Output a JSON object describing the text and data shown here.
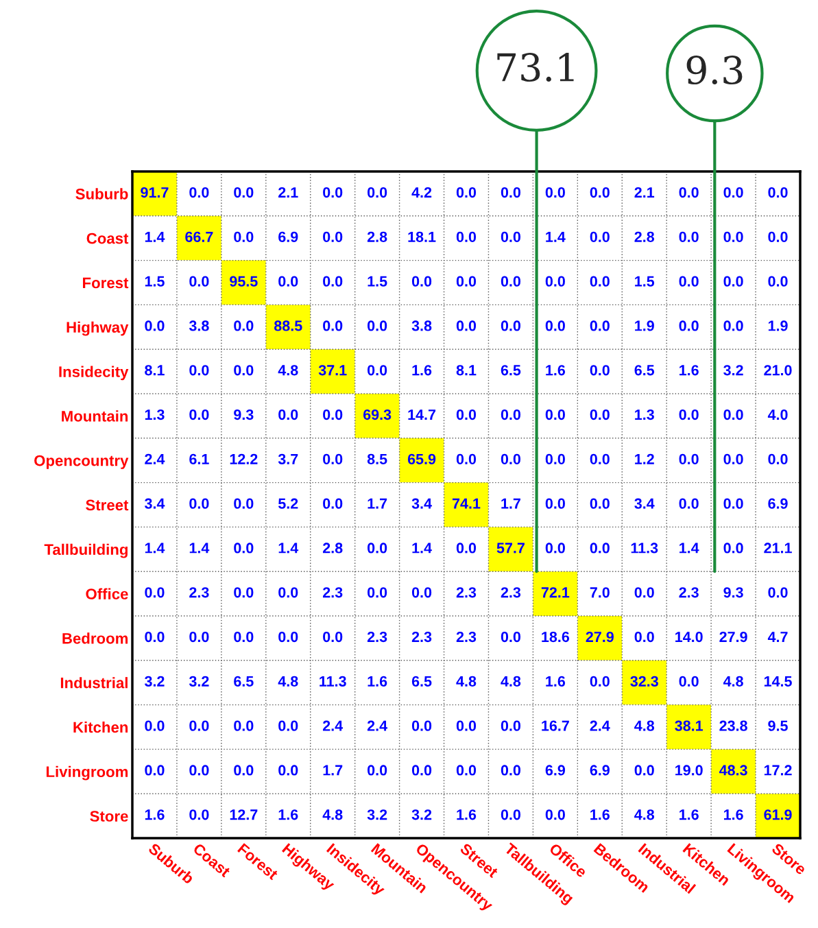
{
  "chart_data": {
    "type": "heatmap",
    "categories": [
      "Suburb",
      "Coast",
      "Forest",
      "Highway",
      "Insidecity",
      "Mountain",
      "Opencountry",
      "Street",
      "Tallbuilding",
      "Office",
      "Bedroom",
      "Industrial",
      "Kitchen",
      "Livingroom",
      "Store"
    ],
    "y_categories": [
      "Suburb",
      "Coast",
      "Forest",
      "Highway",
      "Insidecity",
      "Mountain",
      "Opencountry",
      "Street",
      "Tallbuilding",
      "Office",
      "Bedroom",
      "Industrial",
      "Kitchen",
      "Livingroom",
      "Store"
    ],
    "cells": [
      [
        91.7,
        0.0,
        0.0,
        2.1,
        0.0,
        0.0,
        4.2,
        0.0,
        0.0,
        0.0,
        0.0,
        2.1,
        0.0,
        0.0,
        0.0
      ],
      [
        1.4,
        66.7,
        0.0,
        6.9,
        0.0,
        2.8,
        18.1,
        0.0,
        0.0,
        1.4,
        0.0,
        2.8,
        0.0,
        0.0,
        0.0
      ],
      [
        1.5,
        0.0,
        95.5,
        0.0,
        0.0,
        1.5,
        0.0,
        0.0,
        0.0,
        0.0,
        0.0,
        1.5,
        0.0,
        0.0,
        0.0
      ],
      [
        0.0,
        3.8,
        0.0,
        88.5,
        0.0,
        0.0,
        3.8,
        0.0,
        0.0,
        0.0,
        0.0,
        1.9,
        0.0,
        0.0,
        1.9
      ],
      [
        8.1,
        0.0,
        0.0,
        4.8,
        37.1,
        0.0,
        1.6,
        8.1,
        6.5,
        1.6,
        0.0,
        6.5,
        1.6,
        3.2,
        21.0
      ],
      [
        1.3,
        0.0,
        9.3,
        0.0,
        0.0,
        69.3,
        14.7,
        0.0,
        0.0,
        0.0,
        0.0,
        1.3,
        0.0,
        0.0,
        4.0
      ],
      [
        2.4,
        6.1,
        12.2,
        3.7,
        0.0,
        8.5,
        65.9,
        0.0,
        0.0,
        0.0,
        0.0,
        1.2,
        0.0,
        0.0,
        0.0
      ],
      [
        3.4,
        0.0,
        0.0,
        5.2,
        0.0,
        1.7,
        3.4,
        74.1,
        1.7,
        0.0,
        0.0,
        3.4,
        0.0,
        0.0,
        6.9
      ],
      [
        1.4,
        1.4,
        0.0,
        1.4,
        2.8,
        0.0,
        1.4,
        0.0,
        57.7,
        0.0,
        0.0,
        11.3,
        1.4,
        0.0,
        21.1
      ],
      [
        0.0,
        2.3,
        0.0,
        0.0,
        2.3,
        0.0,
        0.0,
        2.3,
        2.3,
        72.1,
        7.0,
        0.0,
        2.3,
        9.3,
        0.0
      ],
      [
        0.0,
        0.0,
        0.0,
        0.0,
        0.0,
        2.3,
        2.3,
        2.3,
        0.0,
        18.6,
        27.9,
        0.0,
        14.0,
        27.9,
        4.7
      ],
      [
        3.2,
        3.2,
        6.5,
        4.8,
        11.3,
        1.6,
        6.5,
        4.8,
        4.8,
        1.6,
        0.0,
        32.3,
        0.0,
        4.8,
        14.5
      ],
      [
        0.0,
        0.0,
        0.0,
        0.0,
        2.4,
        2.4,
        0.0,
        0.0,
        0.0,
        16.7,
        2.4,
        4.8,
        38.1,
        23.8,
        9.5
      ],
      [
        0.0,
        0.0,
        0.0,
        0.0,
        1.7,
        0.0,
        0.0,
        0.0,
        0.0,
        6.9,
        6.9,
        0.0,
        19.0,
        48.3,
        17.2
      ],
      [
        1.6,
        0.0,
        12.7,
        1.6,
        4.8,
        3.2,
        3.2,
        1.6,
        0.0,
        0.0,
        1.6,
        4.8,
        1.6,
        1.6,
        61.9
      ]
    ],
    "colors": [
      "#ffffff",
      "#ffff00"
    ],
    "grid": true,
    "cell_labels": [
      [
        "91.7",
        "0.0",
        "0.0",
        "2.1",
        "0.0",
        "0.0",
        "4.2",
        "0.0",
        "0.0",
        "0.0",
        "0.0",
        "2.1",
        "0.0",
        "0.0",
        "0.0"
      ],
      [
        "1.4",
        "66.7",
        "0.0",
        "6.9",
        "0.0",
        "2.8",
        "18.1",
        "0.0",
        "0.0",
        "1.4",
        "0.0",
        "2.8",
        "0.0",
        "0.0",
        "0.0"
      ],
      [
        "1.5",
        "0.0",
        "95.5",
        "0.0",
        "0.0",
        "1.5",
        "0.0",
        "0.0",
        "0.0",
        "0.0",
        "0.0",
        "1.5",
        "0.0",
        "0.0",
        "0.0"
      ],
      [
        "0.0",
        "3.8",
        "0.0",
        "88.5",
        "0.0",
        "0.0",
        "3.8",
        "0.0",
        "0.0",
        "0.0",
        "0.0",
        "1.9",
        "0.0",
        "0.0",
        "1.9"
      ],
      [
        "8.1",
        "0.0",
        "0.0",
        "4.8",
        "37.1",
        "0.0",
        "1.6",
        "8.1",
        "6.5",
        "1.6",
        "0.0",
        "6.5",
        "1.6",
        "3.2",
        "21.0"
      ],
      [
        "1.3",
        "0.0",
        "9.3",
        "0.0",
        "0.0",
        "69.3",
        "14.7",
        "0.0",
        "0.0",
        "0.0",
        "0.0",
        "1.3",
        "0.0",
        "0.0",
        "4.0"
      ],
      [
        "2.4",
        "6.1",
        "12.2",
        "3.7",
        "0.0",
        "8.5",
        "65.9",
        "0.0",
        "0.0",
        "0.0",
        "0.0",
        "1.2",
        "0.0",
        "0.0",
        "0.0"
      ],
      [
        "3.4",
        "0.0",
        "0.0",
        "5.2",
        "0.0",
        "1.7",
        "3.4",
        "74.1",
        "1.7",
        "0.0",
        "0.0",
        "3.4",
        "0.0",
        "0.0",
        "6.9"
      ],
      [
        "1.4",
        "1.4",
        "0.0",
        "1.4",
        "2.8",
        "0.0",
        "1.4",
        "0.0",
        "57.7",
        "0.0",
        "0.0",
        "11.3",
        "1.4",
        "0.0",
        "21.1"
      ],
      [
        "0.0",
        "2.3",
        "0.0",
        "0.0",
        "2.3",
        "0.0",
        "0.0",
        "2.3",
        "2.3",
        "72.1",
        "7.0",
        "0.0",
        "2.3",
        "9.3",
        "0.0"
      ],
      [
        "0.0",
        "0.0",
        "0.0",
        "0.0",
        "0.0",
        "2.3",
        "2.3",
        "2.3",
        "0.0",
        "18.6",
        "27.9",
        "0.0",
        "14.0",
        "27.9",
        "4.7"
      ],
      [
        "3.2",
        "3.2",
        "6.5",
        "4.8",
        "11.3",
        "1.6",
        "6.5",
        "4.8",
        "4.8",
        "1.6",
        "0.0",
        "32.3",
        "0.0",
        "4.8",
        "14.5"
      ],
      [
        "0.0",
        "0.0",
        "0.0",
        "0.0",
        "2.4",
        "2.4",
        "0.0",
        "0.0",
        "0.0",
        "16.7",
        "2.4",
        "4.8",
        "38.1",
        "23.8",
        "9.5"
      ],
      [
        "0.0",
        "0.0",
        "0.0",
        "0.0",
        "1.7",
        "0.0",
        "0.0",
        "0.0",
        "0.0",
        "6.9",
        "6.9",
        "0.0",
        "19.0",
        "48.3",
        "17.2"
      ],
      [
        "1.6",
        "0.0",
        "12.7",
        "1.6",
        "4.8",
        "3.2",
        "3.2",
        "1.6",
        "0.0",
        "0.0",
        "1.6",
        "4.8",
        "1.6",
        "1.6",
        "61.9"
      ]
    ],
    "annotations": [
      "73.1",
      "9.3"
    ]
  }
}
